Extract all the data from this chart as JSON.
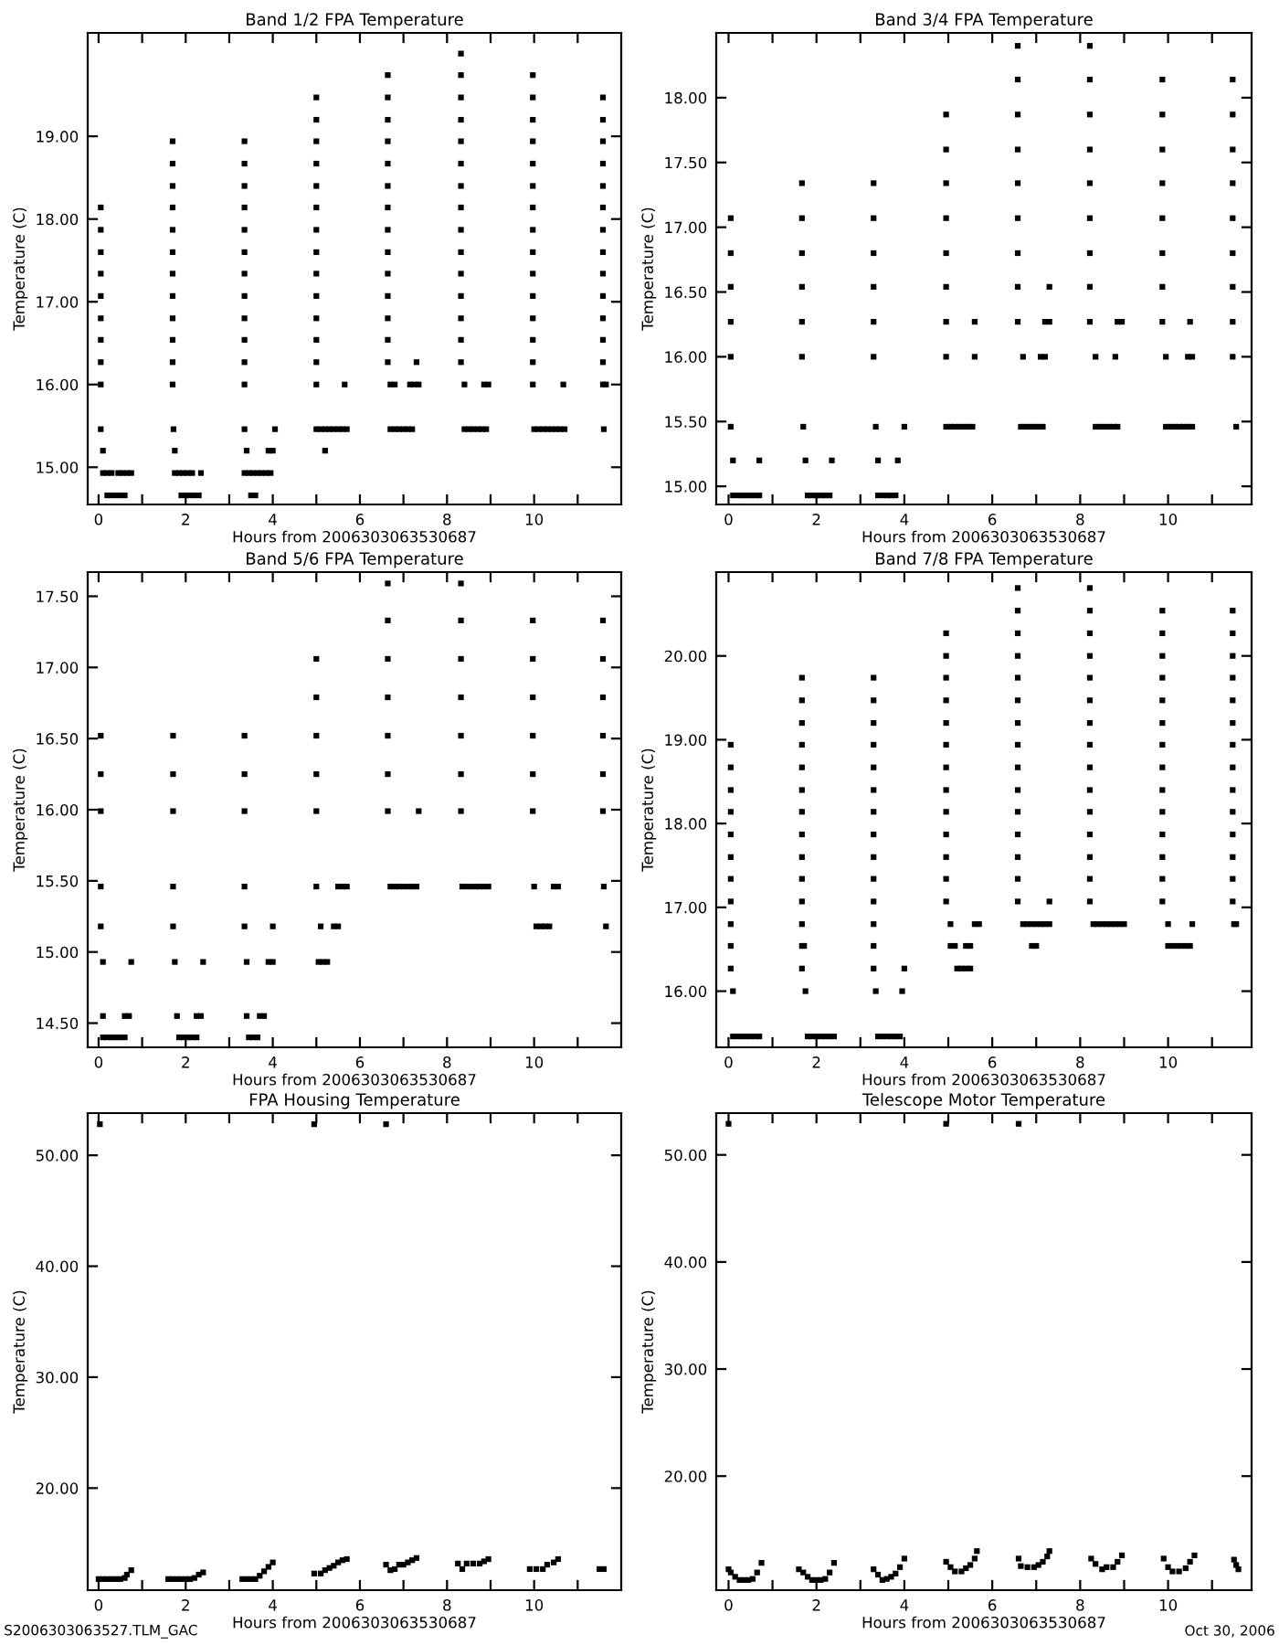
{
  "chart_data": [
    {
      "type": "scatter",
      "title": "Band 1/2 FPA Temperature",
      "xlabel": "Hours from 2006303063530687",
      "ylabel": "Temperature (C)",
      "marker": "square",
      "xlim": [
        -0.25,
        12.0
      ],
      "ylim": [
        14.55,
        20.25
      ],
      "xticks": [
        {
          "value": 0,
          "label": "0"
        },
        {
          "value": 1,
          "label": null
        },
        {
          "value": 2,
          "label": "2"
        },
        {
          "value": 3,
          "label": null
        },
        {
          "value": 4,
          "label": "4"
        },
        {
          "value": 5,
          "label": null
        },
        {
          "value": 6,
          "label": "6"
        },
        {
          "value": 7,
          "label": null
        },
        {
          "value": 8,
          "label": "8"
        },
        {
          "value": 9,
          "label": null
        },
        {
          "value": 10,
          "label": "10"
        },
        {
          "value": 11,
          "label": null
        }
      ],
      "yticks": [
        {
          "value": 15,
          "label": "15.00"
        },
        {
          "value": 16,
          "label": "16.00"
        },
        {
          "value": 17,
          "label": "17.00"
        },
        {
          "value": 18,
          "label": "18.00"
        },
        {
          "value": 19,
          "label": "19.00"
        }
      ],
      "series": [
        {
          "color": "#000000",
          "x": [
            0.05,
            0.05,
            0.05,
            0.05,
            0.05,
            0.05,
            0.05,
            0.05,
            0.05,
            0.05,
            0.1,
            0.1,
            0.2,
            0.3,
            0.45,
            0.55,
            0.65,
            0.75,
            0.2,
            0.3,
            0.4,
            0.5,
            0.6,
            1.7,
            1.7,
            1.7,
            1.7,
            1.7,
            1.7,
            1.7,
            1.7,
            1.7,
            1.7,
            1.7,
            1.7,
            1.72,
            1.75,
            1.75,
            1.85,
            1.95,
            2.05,
            2.15,
            2.35,
            1.9,
            2.0,
            2.1,
            2.2,
            2.3,
            3.35,
            3.35,
            3.35,
            3.35,
            3.35,
            3.35,
            3.35,
            3.35,
            3.35,
            3.35,
            3.35,
            3.35,
            3.35,
            4.05,
            3.4,
            3.9,
            4.0,
            3.35,
            3.45,
            3.55,
            3.65,
            3.75,
            3.85,
            3.95,
            3.5,
            3.6,
            5.0,
            5.0,
            5.0,
            5.0,
            5.0,
            5.0,
            5.0,
            5.0,
            5.0,
            5.0,
            5.0,
            5.0,
            5.0,
            5.0,
            5.65,
            5.0,
            5.1,
            5.2,
            5.3,
            5.4,
            5.5,
            5.6,
            5.7,
            5.2,
            6.64,
            6.64,
            6.64,
            6.64,
            6.64,
            6.64,
            6.64,
            6.64,
            6.64,
            6.64,
            6.64,
            6.64,
            6.64,
            6.64,
            6.7,
            6.8,
            7.3,
            7.15,
            7.25,
            7.35,
            6.7,
            6.8,
            6.9,
            7.0,
            7.1,
            7.2,
            8.32,
            8.32,
            8.32,
            8.32,
            8.32,
            8.32,
            8.32,
            8.32,
            8.32,
            8.32,
            8.32,
            8.32,
            8.32,
            8.32,
            8.32,
            8.4,
            8.85,
            8.95,
            8.4,
            8.5,
            8.6,
            8.7,
            8.8,
            8.9,
            9.97,
            9.97,
            9.97,
            9.97,
            9.97,
            9.97,
            9.97,
            9.97,
            9.97,
            9.97,
            9.97,
            9.97,
            9.97,
            9.97,
            9.97,
            10.67,
            10.0,
            10.1,
            10.2,
            10.3,
            10.4,
            10.5,
            10.6,
            10.7,
            11.58,
            11.58,
            11.58,
            11.58,
            11.58,
            11.58,
            11.58,
            11.58,
            11.58,
            11.58,
            11.58,
            11.58,
            11.58,
            11.58,
            11.65,
            11.6
          ],
          "values": [
            18.14,
            17.87,
            17.6,
            17.34,
            17.07,
            16.8,
            16.54,
            16.27,
            16.0,
            15.46,
            15.2,
            14.93,
            14.93,
            14.93,
            14.93,
            14.93,
            14.93,
            14.93,
            14.66,
            14.66,
            14.66,
            14.66,
            14.66,
            18.94,
            18.67,
            18.4,
            18.14,
            17.87,
            17.6,
            17.34,
            17.07,
            16.8,
            16.54,
            16.27,
            16.0,
            15.46,
            15.2,
            14.93,
            14.93,
            14.93,
            14.93,
            14.93,
            14.93,
            14.66,
            14.66,
            14.66,
            14.66,
            14.66,
            18.94,
            18.67,
            18.4,
            18.14,
            17.87,
            17.6,
            17.34,
            17.07,
            16.8,
            16.54,
            16.27,
            16.0,
            15.46,
            15.46,
            15.2,
            15.2,
            15.2,
            14.93,
            14.93,
            14.93,
            14.93,
            14.93,
            14.93,
            14.93,
            14.66,
            14.66,
            19.47,
            19.2,
            18.94,
            18.67,
            18.4,
            18.14,
            17.87,
            17.6,
            17.34,
            17.07,
            16.8,
            16.54,
            16.27,
            16.0,
            16.0,
            15.46,
            15.46,
            15.46,
            15.46,
            15.46,
            15.46,
            15.46,
            15.46,
            15.2,
            19.74,
            19.47,
            19.2,
            18.94,
            18.67,
            18.4,
            18.14,
            17.87,
            17.6,
            17.34,
            17.07,
            16.8,
            16.54,
            16.27,
            16.0,
            16.0,
            16.27,
            16.0,
            16.0,
            16.0,
            15.46,
            15.46,
            15.46,
            15.46,
            15.46,
            15.46,
            20.0,
            19.74,
            19.47,
            19.2,
            18.94,
            18.67,
            18.4,
            18.14,
            17.87,
            17.6,
            17.34,
            17.07,
            16.8,
            16.54,
            16.27,
            16.0,
            16.0,
            16.0,
            15.46,
            15.46,
            15.46,
            15.46,
            15.46,
            15.46,
            19.74,
            19.47,
            19.2,
            18.94,
            18.67,
            18.4,
            18.14,
            17.87,
            17.6,
            17.34,
            17.07,
            16.8,
            16.54,
            16.27,
            16.0,
            16.0,
            15.46,
            15.46,
            15.46,
            15.46,
            15.46,
            15.46,
            15.46,
            15.46,
            19.47,
            19.2,
            18.94,
            18.67,
            18.4,
            18.14,
            17.87,
            17.6,
            17.34,
            17.07,
            16.8,
            16.54,
            16.27,
            16.0,
            16.0,
            15.46
          ]
        }
      ]
    },
    {
      "type": "scatter",
      "title": "Band 3/4 FPA Temperature",
      "xlabel": "Hours from 2006303063530687",
      "ylabel": "Temperature (C)",
      "marker": "square",
      "xlim": [
        -0.28,
        11.9
      ],
      "ylim": [
        14.86,
        18.5
      ],
      "xticks": [
        {
          "value": 0,
          "label": "0"
        },
        {
          "value": 1,
          "label": null
        },
        {
          "value": 2,
          "label": "2"
        },
        {
          "value": 3,
          "label": null
        },
        {
          "value": 4,
          "label": "4"
        },
        {
          "value": 5,
          "label": null
        },
        {
          "value": 6,
          "label": "6"
        },
        {
          "value": 7,
          "label": null
        },
        {
          "value": 8,
          "label": "8"
        },
        {
          "value": 9,
          "label": null
        },
        {
          "value": 10,
          "label": "10"
        },
        {
          "value": 11,
          "label": null
        }
      ],
      "yticks": [
        {
          "value": 15,
          "label": "15.00"
        },
        {
          "value": 15.5,
          "label": "15.50"
        },
        {
          "value": 16,
          "label": "16.00"
        },
        {
          "value": 16.5,
          "label": "16.50"
        },
        {
          "value": 17,
          "label": "17.00"
        },
        {
          "value": 17.5,
          "label": "17.50"
        },
        {
          "value": 18,
          "label": "18.00"
        }
      ],
      "series": [
        {
          "color": "#000000",
          "x": [
            0.05,
            0.05,
            0.05,
            0.05,
            0.05,
            0.05,
            0.1,
            0.7,
            0.1,
            0.2,
            0.3,
            0.4,
            0.5,
            0.6,
            0.7,
            1.67,
            1.67,
            1.67,
            1.67,
            1.67,
            1.67,
            1.7,
            1.75,
            2.35,
            1.8,
            1.9,
            2.0,
            2.1,
            2.2,
            2.3,
            3.3,
            3.3,
            3.3,
            3.3,
            3.3,
            3.3,
            3.35,
            4.0,
            3.4,
            3.85,
            3.4,
            3.5,
            3.6,
            3.7,
            3.8,
            4.95,
            4.95,
            4.95,
            4.95,
            4.95,
            4.95,
            4.95,
            4.95,
            5.6,
            5.6,
            4.95,
            5.05,
            5.15,
            5.25,
            5.35,
            5.45,
            5.55,
            6.58,
            6.58,
            6.58,
            6.58,
            6.58,
            6.58,
            6.58,
            6.58,
            6.58,
            6.7,
            7.3,
            7.2,
            7.3,
            7.1,
            7.2,
            6.65,
            6.75,
            6.85,
            6.95,
            7.05,
            7.15,
            8.22,
            8.22,
            8.22,
            8.22,
            8.22,
            8.22,
            8.22,
            8.22,
            8.22,
            8.35,
            8.85,
            8.95,
            8.8,
            8.35,
            8.45,
            8.55,
            8.65,
            8.75,
            8.85,
            9.87,
            9.87,
            9.87,
            9.87,
            9.87,
            9.87,
            9.87,
            9.87,
            9.95,
            10.5,
            10.45,
            10.55,
            9.95,
            10.05,
            10.15,
            10.25,
            10.35,
            10.45,
            10.55,
            11.47,
            11.47,
            11.47,
            11.47,
            11.47,
            11.47,
            11.47,
            11.47,
            11.47,
            11.55
          ],
          "values": [
            17.07,
            16.8,
            16.54,
            16.27,
            16.0,
            15.46,
            15.2,
            15.2,
            14.93,
            14.93,
            14.93,
            14.93,
            14.93,
            14.93,
            14.93,
            17.34,
            17.07,
            16.8,
            16.54,
            16.27,
            16.0,
            15.46,
            15.2,
            15.2,
            14.93,
            14.93,
            14.93,
            14.93,
            14.93,
            14.93,
            17.34,
            17.07,
            16.8,
            16.54,
            16.27,
            16.0,
            15.46,
            15.46,
            15.2,
            15.2,
            14.93,
            14.93,
            14.93,
            14.93,
            14.93,
            17.87,
            17.6,
            17.34,
            17.07,
            16.8,
            16.54,
            16.27,
            16.0,
            16.27,
            16.0,
            15.46,
            15.46,
            15.46,
            15.46,
            15.46,
            15.46,
            15.46,
            18.4,
            18.14,
            17.87,
            17.6,
            17.34,
            17.07,
            16.8,
            16.54,
            16.27,
            16.0,
            16.54,
            16.27,
            16.27,
            16.0,
            16.0,
            15.46,
            15.46,
            15.46,
            15.46,
            15.46,
            15.46,
            18.4,
            18.14,
            17.87,
            17.6,
            17.34,
            17.07,
            16.8,
            16.54,
            16.27,
            16.0,
            16.27,
            16.27,
            16.0,
            15.46,
            15.46,
            15.46,
            15.46,
            15.46,
            15.46,
            18.14,
            17.87,
            17.6,
            17.34,
            17.07,
            16.8,
            16.54,
            16.27,
            16.0,
            16.27,
            16.0,
            16.0,
            15.46,
            15.46,
            15.46,
            15.46,
            15.46,
            15.46,
            15.46,
            18.14,
            17.87,
            17.6,
            17.34,
            17.07,
            16.8,
            16.54,
            16.27,
            16.0,
            15.46
          ]
        }
      ]
    },
    {
      "type": "scatter",
      "title": "Band 5/6 FPA Temperature",
      "xlabel": "Hours from 2006303063530687",
      "ylabel": "Temperature (C)",
      "marker": "square",
      "xlim": [
        -0.25,
        12.0
      ],
      "ylim": [
        14.33,
        17.67
      ],
      "xticks": [
        {
          "value": 0,
          "label": "0"
        },
        {
          "value": 1,
          "label": null
        },
        {
          "value": 2,
          "label": "2"
        },
        {
          "value": 3,
          "label": null
        },
        {
          "value": 4,
          "label": "4"
        },
        {
          "value": 5,
          "label": null
        },
        {
          "value": 6,
          "label": "6"
        },
        {
          "value": 7,
          "label": null
        },
        {
          "value": 8,
          "label": "8"
        },
        {
          "value": 9,
          "label": null
        },
        {
          "value": 10,
          "label": "10"
        },
        {
          "value": 11,
          "label": null
        }
      ],
      "yticks": [
        {
          "value": 14.5,
          "label": "14.50"
        },
        {
          "value": 15,
          "label": "15.00"
        },
        {
          "value": 15.5,
          "label": "15.50"
        },
        {
          "value": 16,
          "label": "16.00"
        },
        {
          "value": 16.5,
          "label": "16.50"
        },
        {
          "value": 17,
          "label": "17.00"
        },
        {
          "value": 17.5,
          "label": "17.50"
        }
      ],
      "series": [
        {
          "color": "#000000",
          "x": [
            0.05,
            0.05,
            0.05,
            0.05,
            0.05,
            0.1,
            0.75,
            0.1,
            0.6,
            0.7,
            0.1,
            0.2,
            0.3,
            0.4,
            0.5,
            0.6,
            1.71,
            1.71,
            1.71,
            1.71,
            1.71,
            1.75,
            2.4,
            1.8,
            2.25,
            2.35,
            1.85,
            1.95,
            2.05,
            2.15,
            2.25,
            3.35,
            3.35,
            3.35,
            3.35,
            3.35,
            4.0,
            3.4,
            3.9,
            4.0,
            3.4,
            3.7,
            3.8,
            3.45,
            3.55,
            3.65,
            5.0,
            5.0,
            5.0,
            5.0,
            5.0,
            5.0,
            5.5,
            5.6,
            5.7,
            5.1,
            5.4,
            5.5,
            5.05,
            5.15,
            5.25,
            6.64,
            6.64,
            6.64,
            6.64,
            6.64,
            6.64,
            6.64,
            7.35,
            6.7,
            6.8,
            6.9,
            7.0,
            7.1,
            7.2,
            7.3,
            8.32,
            8.32,
            8.32,
            8.32,
            8.32,
            8.32,
            8.32,
            8.35,
            8.45,
            8.55,
            8.65,
            8.75,
            8.85,
            8.95,
            9.97,
            9.97,
            9.97,
            9.97,
            9.97,
            9.97,
            10.0,
            10.45,
            10.55,
            10.05,
            10.15,
            10.25,
            10.35,
            11.58,
            11.58,
            11.58,
            11.58,
            11.58,
            11.58,
            11.6,
            11.65
          ],
          "values": [
            16.52,
            16.25,
            15.99,
            15.46,
            15.18,
            14.93,
            14.93,
            14.55,
            14.55,
            14.55,
            14.4,
            14.4,
            14.4,
            14.4,
            14.4,
            14.4,
            16.52,
            16.25,
            15.99,
            15.46,
            15.18,
            14.93,
            14.93,
            14.55,
            14.55,
            14.55,
            14.4,
            14.4,
            14.4,
            14.4,
            14.4,
            16.52,
            16.25,
            15.99,
            15.46,
            15.18,
            15.18,
            14.93,
            14.93,
            14.93,
            14.55,
            14.55,
            14.55,
            14.4,
            14.4,
            14.4,
            17.06,
            16.79,
            16.52,
            16.25,
            15.99,
            15.46,
            15.46,
            15.46,
            15.46,
            15.18,
            15.18,
            15.18,
            14.93,
            14.93,
            14.93,
            17.59,
            17.33,
            17.06,
            16.79,
            16.52,
            16.25,
            15.99,
            15.99,
            15.46,
            15.46,
            15.46,
            15.46,
            15.46,
            15.46,
            15.46,
            17.59,
            17.33,
            17.06,
            16.79,
            16.52,
            16.25,
            15.99,
            15.46,
            15.46,
            15.46,
            15.46,
            15.46,
            15.46,
            15.46,
            17.33,
            17.06,
            16.79,
            16.52,
            16.25,
            15.99,
            15.46,
            15.46,
            15.46,
            15.18,
            15.18,
            15.18,
            15.18,
            17.33,
            17.06,
            16.79,
            16.52,
            16.25,
            15.99,
            15.46,
            15.18
          ]
        }
      ]
    },
    {
      "type": "scatter",
      "title": "Band 7/8 FPA Temperature",
      "xlabel": "Hours from 2006303063530687",
      "ylabel": "Temperature (C)",
      "marker": "square",
      "xlim": [
        -0.28,
        11.9
      ],
      "ylim": [
        15.33,
        21.0
      ],
      "xticks": [
        {
          "value": 0,
          "label": "0"
        },
        {
          "value": 1,
          "label": null
        },
        {
          "value": 2,
          "label": "2"
        },
        {
          "value": 3,
          "label": null
        },
        {
          "value": 4,
          "label": "4"
        },
        {
          "value": 5,
          "label": null
        },
        {
          "value": 6,
          "label": "6"
        },
        {
          "value": 7,
          "label": null
        },
        {
          "value": 8,
          "label": "8"
        },
        {
          "value": 9,
          "label": null
        },
        {
          "value": 10,
          "label": "10"
        },
        {
          "value": 11,
          "label": null
        }
      ],
      "yticks": [
        {
          "value": 16,
          "label": "16.00"
        },
        {
          "value": 17,
          "label": "17.00"
        },
        {
          "value": 18,
          "label": "18.00"
        },
        {
          "value": 19,
          "label": "19.00"
        },
        {
          "value": 20,
          "label": "20.00"
        }
      ],
      "series": [
        {
          "color": "#000000",
          "x": [
            0.05,
            0.05,
            0.05,
            0.05,
            0.05,
            0.05,
            0.05,
            0.05,
            0.05,
            0.05,
            0.05,
            0.1,
            0.1,
            0.2,
            0.3,
            0.4,
            0.5,
            0.6,
            0.7,
            1.67,
            1.67,
            1.67,
            1.67,
            1.67,
            1.67,
            1.67,
            1.67,
            1.67,
            1.67,
            1.67,
            1.67,
            1.67,
            1.67,
            1.72,
            1.75,
            1.8,
            1.9,
            2.0,
            2.1,
            2.2,
            2.3,
            2.4,
            3.3,
            3.3,
            3.3,
            3.3,
            3.3,
            3.3,
            3.3,
            3.3,
            3.3,
            3.3,
            3.3,
            3.3,
            3.3,
            3.3,
            3.35,
            3.95,
            4.0,
            3.4,
            3.5,
            3.6,
            3.7,
            3.8,
            3.9,
            4.95,
            4.95,
            4.95,
            4.95,
            4.95,
            4.95,
            4.95,
            4.95,
            4.95,
            4.95,
            4.95,
            4.95,
            4.95,
            5.05,
            5.6,
            5.7,
            5.05,
            5.15,
            5.4,
            5.5,
            5.2,
            5.3,
            5.4,
            5.5,
            6.58,
            6.58,
            6.58,
            6.58,
            6.58,
            6.58,
            6.58,
            6.58,
            6.58,
            6.58,
            6.58,
            6.58,
            6.58,
            6.58,
            6.58,
            7.3,
            6.7,
            6.8,
            6.9,
            7.0,
            7.1,
            7.2,
            7.3,
            6.9,
            7.0,
            8.22,
            8.22,
            8.22,
            8.22,
            8.22,
            8.22,
            8.22,
            8.22,
            8.22,
            8.22,
            8.22,
            8.22,
            8.22,
            8.22,
            8.22,
            8.3,
            8.4,
            8.5,
            8.6,
            8.7,
            8.8,
            8.9,
            9.0,
            9.87,
            9.87,
            9.87,
            9.87,
            9.87,
            9.87,
            9.87,
            9.87,
            9.87,
            9.87,
            9.87,
            9.87,
            9.87,
            9.87,
            10.0,
            10.55,
            10.0,
            10.1,
            10.2,
            10.3,
            10.4,
            10.5,
            11.47,
            11.47,
            11.47,
            11.47,
            11.47,
            11.47,
            11.47,
            11.47,
            11.47,
            11.47,
            11.47,
            11.47,
            11.47,
            11.47,
            11.5,
            11.55
          ],
          "values": [
            18.94,
            18.67,
            18.4,
            18.14,
            17.87,
            17.6,
            17.34,
            17.07,
            16.8,
            16.54,
            16.27,
            16.0,
            15.46,
            15.46,
            15.46,
            15.46,
            15.46,
            15.46,
            15.46,
            19.74,
            19.47,
            19.2,
            18.94,
            18.67,
            18.4,
            18.14,
            17.87,
            17.6,
            17.34,
            17.07,
            16.8,
            16.54,
            16.27,
            16.54,
            16.0,
            15.46,
            15.46,
            15.46,
            15.46,
            15.46,
            15.46,
            15.46,
            19.74,
            19.47,
            19.2,
            18.94,
            18.67,
            18.4,
            18.14,
            17.87,
            17.6,
            17.34,
            17.07,
            16.8,
            16.54,
            16.27,
            16.0,
            16.0,
            16.27,
            15.46,
            15.46,
            15.46,
            15.46,
            15.46,
            15.46,
            20.27,
            20.0,
            19.74,
            19.47,
            19.2,
            18.94,
            18.67,
            18.4,
            18.14,
            17.87,
            17.6,
            17.34,
            17.07,
            16.8,
            16.8,
            16.8,
            16.54,
            16.54,
            16.54,
            16.54,
            16.27,
            16.27,
            16.27,
            16.27,
            20.81,
            20.54,
            20.27,
            20.0,
            19.74,
            19.47,
            19.2,
            18.94,
            18.67,
            18.4,
            18.14,
            17.87,
            17.6,
            17.34,
            17.07,
            17.07,
            16.8,
            16.8,
            16.8,
            16.8,
            16.8,
            16.8,
            16.8,
            16.54,
            16.54,
            20.81,
            20.54,
            20.27,
            20.0,
            19.74,
            19.47,
            19.2,
            18.94,
            18.67,
            18.4,
            18.14,
            17.87,
            17.6,
            17.34,
            17.07,
            16.8,
            16.8,
            16.8,
            16.8,
            16.8,
            16.8,
            16.8,
            16.8,
            20.54,
            20.27,
            20.0,
            19.74,
            19.47,
            19.2,
            18.94,
            18.67,
            18.4,
            18.14,
            17.87,
            17.6,
            17.34,
            17.07,
            16.8,
            16.8,
            16.54,
            16.54,
            16.54,
            16.54,
            16.54,
            16.54,
            20.54,
            20.27,
            20.0,
            19.74,
            19.47,
            19.2,
            18.94,
            18.67,
            18.4,
            18.14,
            17.87,
            17.6,
            17.34,
            17.07,
            16.8,
            16.8
          ]
        }
      ]
    },
    {
      "type": "scatter",
      "title": "FPA Housing Temperature",
      "xlabel": "Hours from 2006303063530687",
      "ylabel": "Temperature (C)",
      "marker": "square",
      "xlim": [
        -0.25,
        12.0
      ],
      "ylim": [
        10.8,
        53.8
      ],
      "xticks": [
        {
          "value": 0,
          "label": "0"
        },
        {
          "value": 1,
          "label": null
        },
        {
          "value": 2,
          "label": "2"
        },
        {
          "value": 3,
          "label": null
        },
        {
          "value": 4,
          "label": "4"
        },
        {
          "value": 5,
          "label": null
        },
        {
          "value": 6,
          "label": "6"
        },
        {
          "value": 7,
          "label": null
        },
        {
          "value": 8,
          "label": "8"
        },
        {
          "value": 9,
          "label": null
        },
        {
          "value": 10,
          "label": "10"
        },
        {
          "value": 11,
          "label": null
        }
      ],
      "yticks": [
        {
          "value": 20,
          "label": "20.00"
        },
        {
          "value": 30,
          "label": "30.00"
        },
        {
          "value": 40,
          "label": "40.00"
        },
        {
          "value": 50,
          "label": "50.00"
        }
      ],
      "annotations": [
        "S2006303063527.TLM_GAC"
      ],
      "series": [
        {
          "color": "#000000",
          "x": [
            0.03,
            4.95,
            6.6,
            0.0,
            0.1,
            0.2,
            0.3,
            0.4,
            0.5,
            0.6,
            0.65,
            0.75,
            1.6,
            1.7,
            1.8,
            1.9,
            2.0,
            2.1,
            2.2,
            2.3,
            2.4,
            3.3,
            3.4,
            3.5,
            3.6,
            3.7,
            3.8,
            3.9,
            4.0,
            4.95,
            5.1,
            5.2,
            5.3,
            5.4,
            5.5,
            5.6,
            5.7,
            6.6,
            6.7,
            6.8,
            6.9,
            7.0,
            7.1,
            7.2,
            7.3,
            8.25,
            8.35,
            8.45,
            8.6,
            8.75,
            8.85,
            8.95,
            9.9,
            10.05,
            10.2,
            10.3,
            10.45,
            10.55,
            11.5,
            11.6
          ],
          "values": [
            52.8,
            52.8,
            52.8,
            11.8,
            11.8,
            11.8,
            11.8,
            11.8,
            11.8,
            11.9,
            12.2,
            12.6,
            11.8,
            11.8,
            11.8,
            11.8,
            11.8,
            11.8,
            11.9,
            12.2,
            12.4,
            11.8,
            11.8,
            11.8,
            11.8,
            12.1,
            12.5,
            12.9,
            13.3,
            12.3,
            12.3,
            12.6,
            12.8,
            13.0,
            13.3,
            13.5,
            13.6,
            13.1,
            12.6,
            12.7,
            13.1,
            13.1,
            13.3,
            13.5,
            13.7,
            13.2,
            12.7,
            13.2,
            13.2,
            13.2,
            13.4,
            13.6,
            12.7,
            12.7,
            12.7,
            13.1,
            13.3,
            13.6,
            12.7,
            12.7
          ]
        }
      ]
    },
    {
      "type": "scatter",
      "title": "Telescope Motor Temperature",
      "xlabel": "Hours from 2006303063530687",
      "ylabel": "Temperature (C)",
      "marker": "square",
      "xlim": [
        -0.28,
        11.9
      ],
      "ylim": [
        9.35,
        53.9
      ],
      "xticks": [
        {
          "value": 0,
          "label": "0"
        },
        {
          "value": 1,
          "label": null
        },
        {
          "value": 2,
          "label": "2"
        },
        {
          "value": 3,
          "label": null
        },
        {
          "value": 4,
          "label": "4"
        },
        {
          "value": 5,
          "label": null
        },
        {
          "value": 6,
          "label": "6"
        },
        {
          "value": 7,
          "label": null
        },
        {
          "value": 8,
          "label": "8"
        },
        {
          "value": 9,
          "label": null
        },
        {
          "value": 10,
          "label": "10"
        },
        {
          "value": 11,
          "label": null
        }
      ],
      "yticks": [
        {
          "value": 20,
          "label": "20.00"
        },
        {
          "value": 30,
          "label": "30.00"
        },
        {
          "value": 40,
          "label": "40.00"
        },
        {
          "value": 50,
          "label": "50.00"
        }
      ],
      "annotations": [
        "Oct 30, 2006"
      ],
      "series": [
        {
          "color": "#000000",
          "x": [
            0.0,
            4.95,
            6.6,
            0.0,
            0.05,
            0.15,
            0.25,
            0.35,
            0.45,
            0.55,
            0.65,
            0.75,
            1.6,
            1.7,
            1.8,
            1.9,
            2.0,
            2.1,
            2.2,
            2.3,
            2.4,
            3.3,
            3.4,
            3.5,
            3.6,
            3.7,
            3.8,
            3.9,
            4.0,
            4.95,
            5.05,
            5.15,
            5.3,
            5.4,
            5.5,
            5.6,
            5.65,
            6.6,
            6.65,
            6.8,
            6.95,
            7.05,
            7.15,
            7.25,
            7.3,
            8.25,
            8.35,
            8.5,
            8.6,
            8.75,
            8.85,
            8.95,
            9.9,
            10.0,
            10.1,
            10.25,
            10.4,
            10.5,
            10.6,
            11.5,
            11.55,
            11.6
          ],
          "values": [
            52.9,
            52.9,
            52.9,
            11.3,
            11.0,
            10.6,
            10.3,
            10.3,
            10.3,
            10.4,
            11.0,
            11.9,
            11.3,
            11.0,
            10.6,
            10.3,
            10.3,
            10.3,
            10.4,
            11.0,
            11.9,
            11.3,
            10.8,
            10.3,
            10.4,
            10.6,
            10.9,
            11.5,
            12.3,
            12.0,
            11.5,
            11.1,
            11.1,
            11.4,
            11.7,
            12.3,
            13.0,
            12.3,
            11.6,
            11.5,
            11.5,
            11.7,
            12.0,
            12.5,
            13.0,
            12.3,
            11.8,
            11.3,
            11.5,
            11.5,
            12.0,
            12.6,
            12.3,
            11.5,
            11.1,
            11.1,
            11.4,
            12.0,
            12.6,
            12.2,
            11.7,
            11.3
          ]
        }
      ]
    }
  ]
}
